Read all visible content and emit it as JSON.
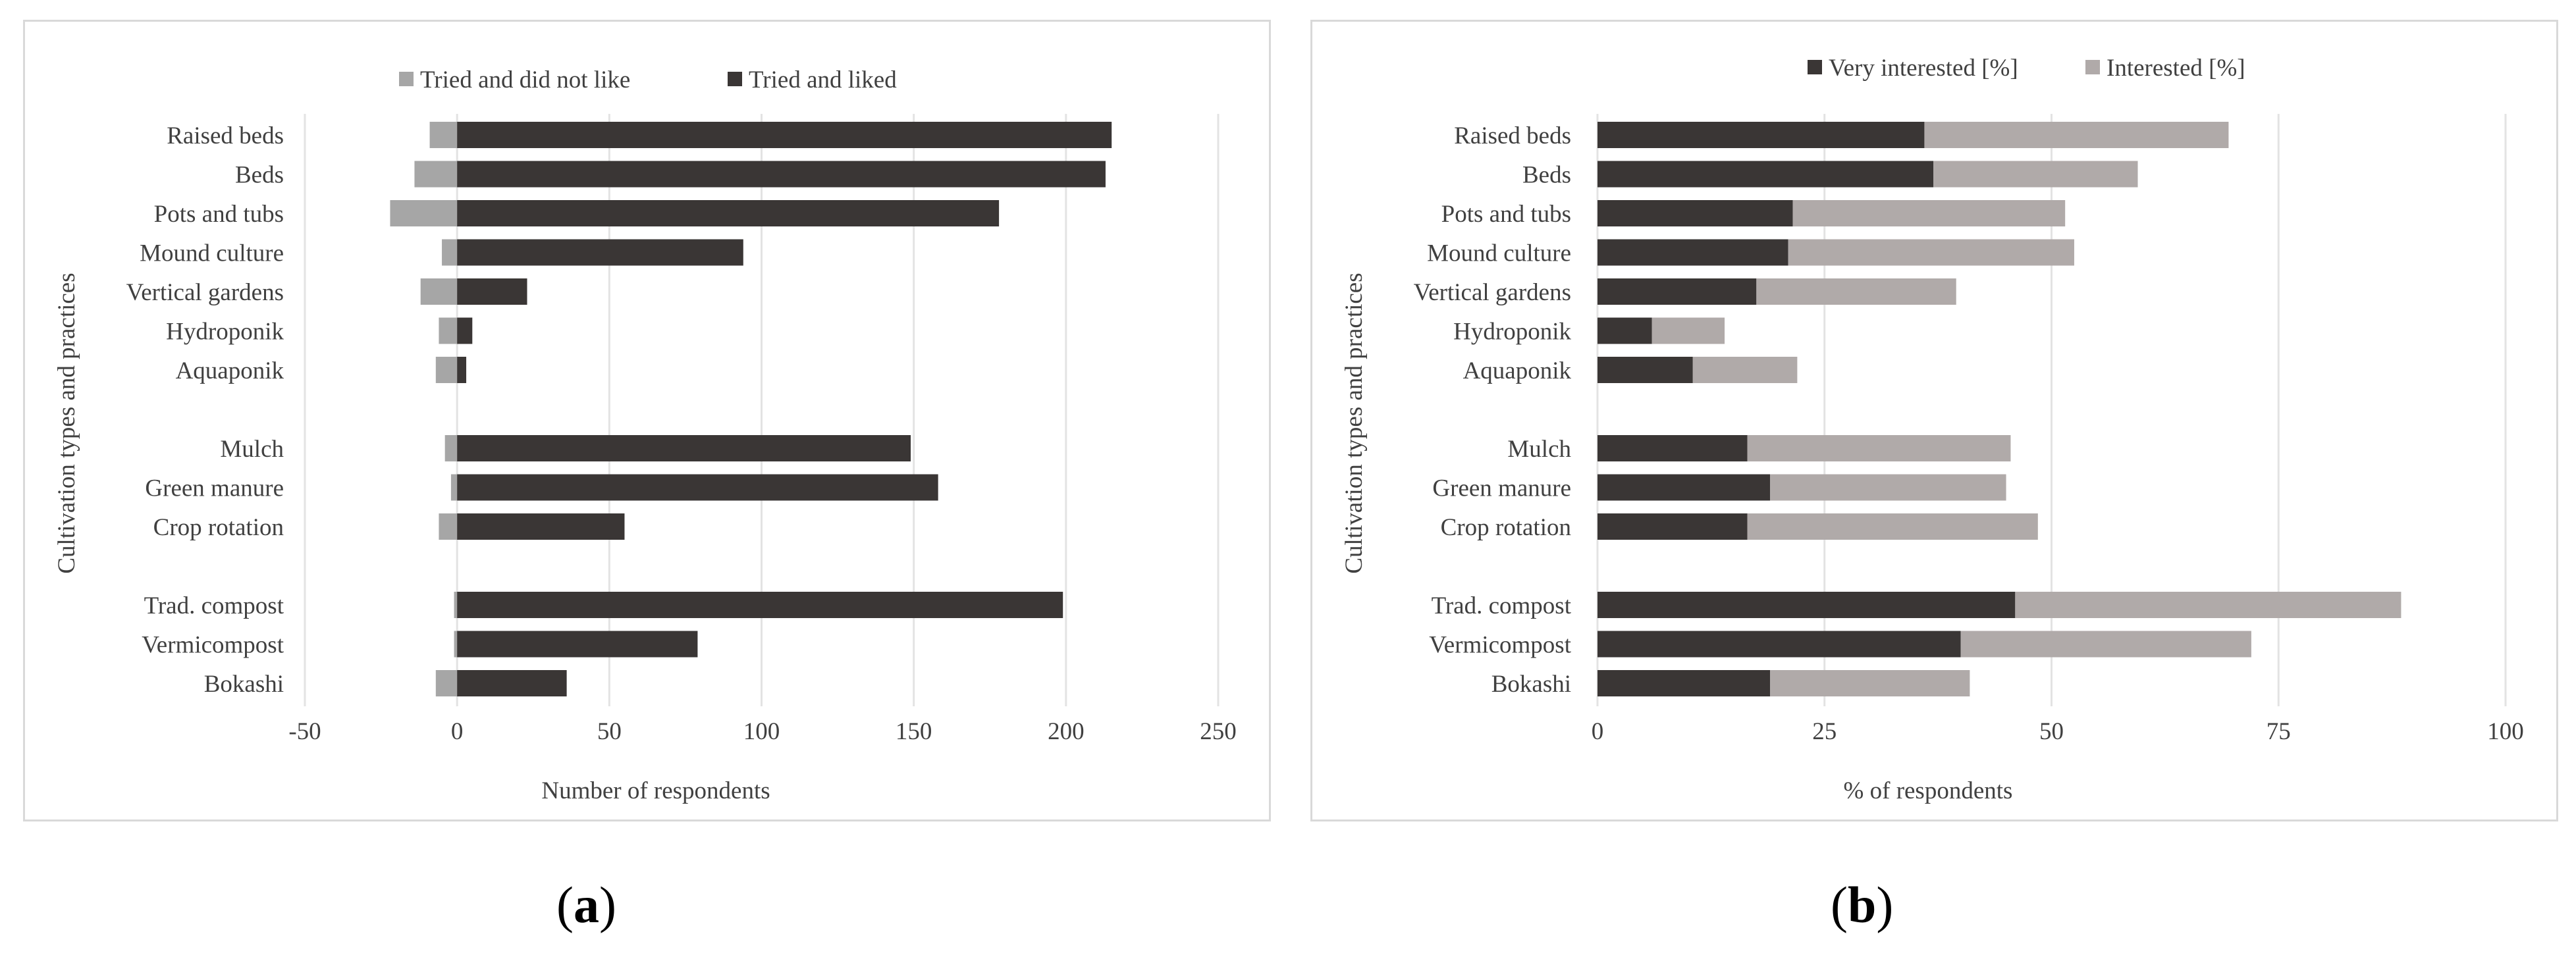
{
  "panels": [
    {
      "caption_prefix": "(",
      "caption_letter": "a",
      "caption_suffix": ")"
    },
    {
      "caption_prefix": "(",
      "caption_letter": "b",
      "caption_suffix": ")"
    }
  ],
  "chart_data": [
    {
      "type": "bar",
      "orientation": "horizontal",
      "stacked": true,
      "ylabel": "Cultivation types and practices",
      "xlabel": "Number of respondents",
      "xlim": [
        -50,
        250
      ],
      "xticks": [
        -50,
        0,
        50,
        100,
        150,
        200,
        250
      ],
      "grid": "vertical",
      "legend_position": "top",
      "categories": [
        "Raised beds",
        "Beds",
        "Pots and tubs",
        "Mound culture",
        "Vertical gardens",
        "Hydroponik",
        "Aquaponik",
        "Mulch",
        "Green manure",
        "Crop rotation",
        "Trad. compost",
        "Vermicompost",
        "Bokashi"
      ],
      "category_groups": [
        7,
        3,
        3
      ],
      "series": [
        {
          "name": "Tried and did not like",
          "color": "#a6a6a6",
          "values": [
            -9,
            -14,
            -22,
            -5,
            -12,
            -6,
            -7,
            -4,
            -2,
            -6,
            -1,
            -1,
            -7
          ]
        },
        {
          "name": "Tried and liked",
          "color": "#3a3635",
          "values": [
            215,
            213,
            178,
            94,
            23,
            5,
            3,
            149,
            158,
            55,
            199,
            79,
            36
          ]
        }
      ]
    },
    {
      "type": "bar",
      "orientation": "horizontal",
      "stacked": true,
      "ylabel": "Cultivation types and practices",
      "xlabel": "% of respondents",
      "xlim": [
        0,
        100
      ],
      "xticks": [
        0,
        25,
        50,
        75,
        100
      ],
      "grid": "vertical",
      "legend_position": "top",
      "categories": [
        "Raised beds",
        "Beds",
        "Pots and tubs",
        "Mound culture",
        "Vertical gardens",
        "Hydroponik",
        "Aquaponik",
        "Mulch",
        "Green manure",
        "Crop rotation",
        "Trad. compost",
        "Vermicompost",
        "Bokashi"
      ],
      "category_groups": [
        7,
        3,
        3
      ],
      "series": [
        {
          "name": "Very interested [%]",
          "color": "#3a3635",
          "values": [
            36,
            37,
            21.5,
            21,
            17.5,
            6,
            10.5,
            16.5,
            19,
            16.5,
            46,
            40,
            19
          ]
        },
        {
          "name": "Interested [%]",
          "color": "#b0aaa9",
          "values": [
            33.5,
            22.5,
            30,
            31.5,
            22,
            8,
            11.5,
            29,
            26,
            32,
            42.5,
            32,
            22
          ]
        }
      ]
    }
  ]
}
